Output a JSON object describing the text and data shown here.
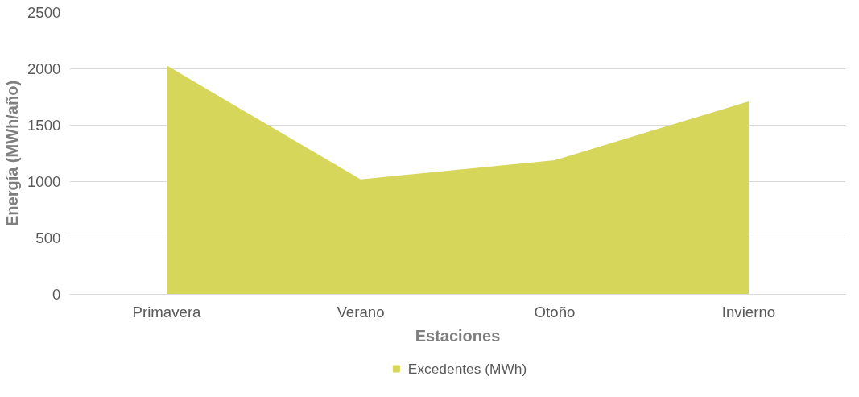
{
  "chart_data": {
    "type": "area",
    "xlabel": "Estaciones",
    "ylabel": "Energía (MWh/año)",
    "categories": [
      "Primavera",
      "Verano",
      "Otoño",
      "Invierno"
    ],
    "series": [
      {
        "name": "Excedentes (MWh)",
        "color": "#d6d65a",
        "values": [
          2030,
          1020,
          1190,
          1710
        ]
      }
    ],
    "ylim": [
      0,
      2500
    ],
    "yticks": [
      0,
      500,
      1000,
      1500,
      2000,
      2500
    ],
    "grid": "y",
    "legend": "bottom"
  }
}
